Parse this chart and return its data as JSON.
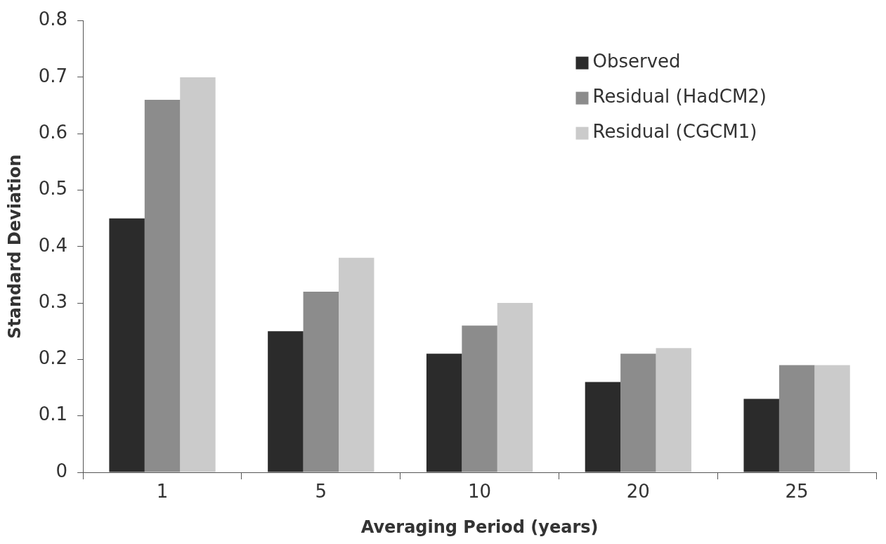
{
  "chart_data": {
    "type": "bar",
    "xlabel": "Averaging Period (years)",
    "ylabel": "Standard Deviation",
    "categories": [
      "1",
      "5",
      "10",
      "20",
      "25"
    ],
    "series": [
      {
        "name": "Observed",
        "color": "#2b2b2b",
        "values": [
          0.45,
          0.25,
          0.21,
          0.16,
          0.13
        ]
      },
      {
        "name": "Residual (HadCM2)",
        "color": "#8c8c8c",
        "values": [
          0.66,
          0.32,
          0.26,
          0.21,
          0.19
        ]
      },
      {
        "name": "Residual (CGCM1)",
        "color": "#cbcbcb",
        "values": [
          0.7,
          0.38,
          0.3,
          0.22,
          0.19
        ]
      }
    ],
    "ylim": [
      0,
      0.8
    ],
    "yticks": [
      0,
      0.1,
      0.2,
      0.3,
      0.4,
      0.5,
      0.6,
      0.7,
      0.8
    ],
    "grid": false,
    "legend": "top right"
  }
}
